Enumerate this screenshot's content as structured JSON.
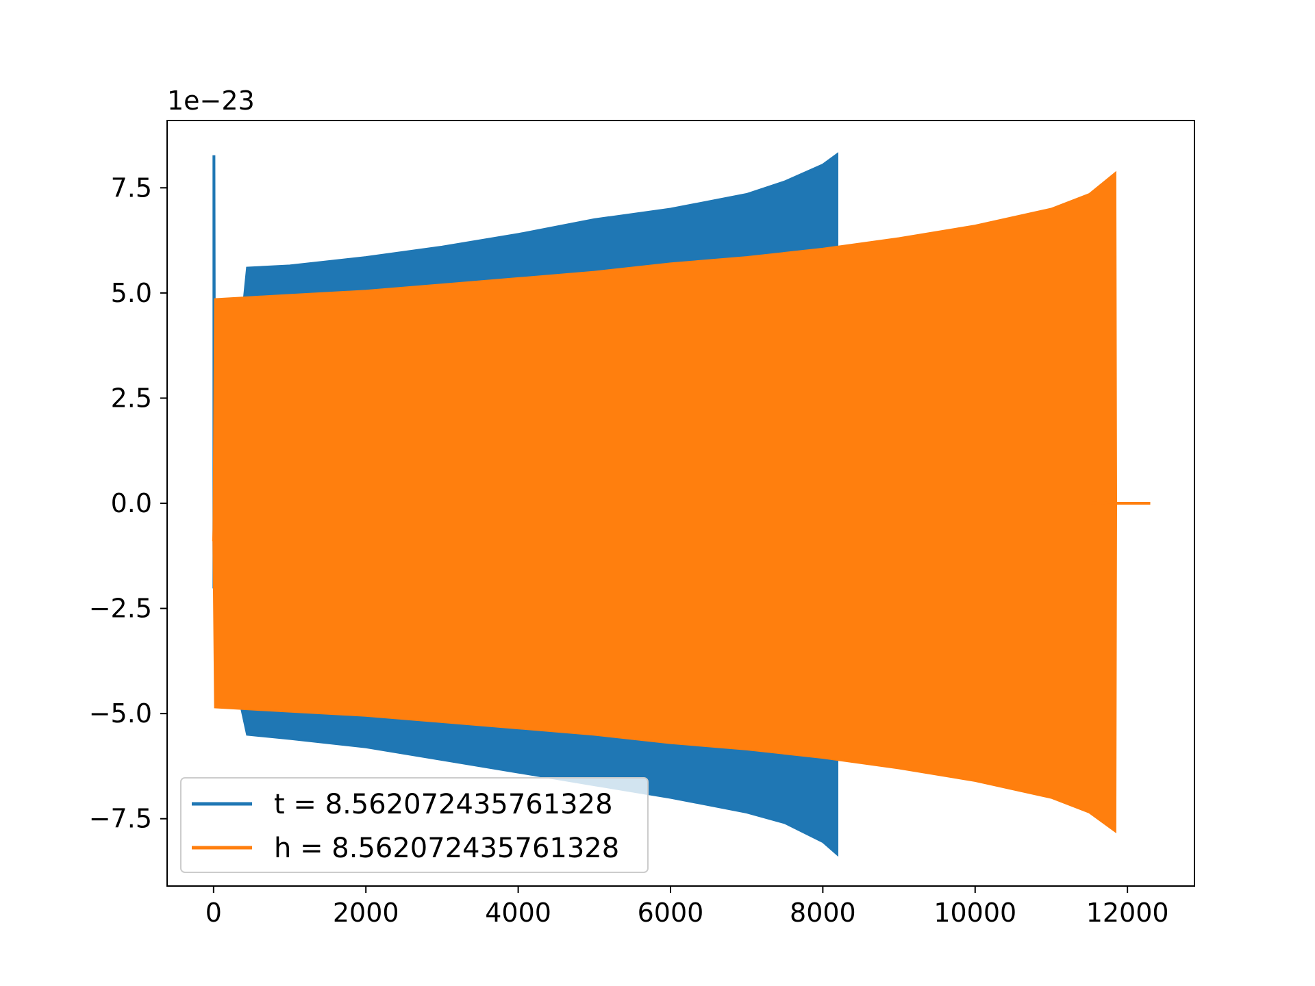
{
  "chart_data": {
    "type": "line",
    "title": "",
    "xlabel": "",
    "ylabel": "",
    "y_offset_label": "1e−23",
    "xlim": [
      -610,
      12880
    ],
    "ylim": [
      -9.1,
      9.1
    ],
    "xticks": [
      0,
      2000,
      4000,
      6000,
      8000,
      10000,
      12000
    ],
    "xtick_labels": [
      "0",
      "2000",
      "4000",
      "6000",
      "8000",
      "10000",
      "12000"
    ],
    "yticks": [
      -7.5,
      -5.0,
      -2.5,
      0.0,
      2.5,
      5.0,
      7.5
    ],
    "ytick_labels": [
      "−7.5",
      "−5.0",
      "−2.5",
      "0.0",
      "2.5",
      "5.0",
      "7.5"
    ],
    "grid": false,
    "legend_position": "lower-left",
    "y_units_scale": "1e-23",
    "series": [
      {
        "name": "t = 8.562072435761328",
        "color": "#1f77b4",
        "description_points": "upper/lower envelope of an oscillating chirp signal",
        "x": [
          0,
          10,
          20,
          440,
          1000,
          2000,
          3000,
          4000,
          5000,
          6000,
          7000,
          7500,
          8000,
          8190
        ],
        "upper": [
          8.25,
          8.25,
          -2.0,
          5.6,
          5.65,
          5.85,
          6.1,
          6.4,
          6.75,
          7.0,
          7.35,
          7.65,
          8.05,
          8.3
        ],
        "lower": [
          -2.0,
          -2.0,
          -2.0,
          -5.5,
          -5.6,
          -5.8,
          -6.1,
          -6.4,
          -6.7,
          -7.0,
          -7.35,
          -7.6,
          -8.05,
          -8.35
        ]
      },
      {
        "name": "h = 8.562072435761328",
        "color": "#ff7f0e",
        "x": [
          0,
          20,
          500,
          1000,
          2000,
          3000,
          4000,
          5000,
          6000,
          7000,
          8000,
          9000,
          10000,
          11000,
          11500,
          11840,
          11850,
          12300
        ],
        "upper": [
          -0.9,
          4.85,
          4.9,
          4.95,
          5.05,
          5.2,
          5.35,
          5.5,
          5.7,
          5.85,
          6.05,
          6.3,
          6.6,
          7.0,
          7.35,
          7.85,
          0.0,
          0.0
        ],
        "lower": [
          -0.9,
          -4.85,
          -4.9,
          -4.95,
          -5.05,
          -5.2,
          -5.35,
          -5.5,
          -5.7,
          -5.85,
          -6.05,
          -6.3,
          -6.6,
          -7.0,
          -7.35,
          -7.8,
          0.0,
          0.0
        ]
      }
    ]
  }
}
